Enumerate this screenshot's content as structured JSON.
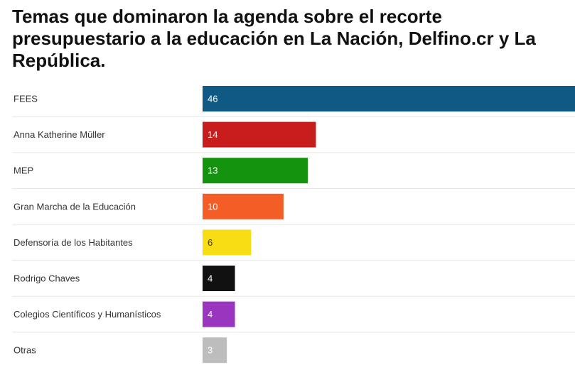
{
  "chart_data": {
    "type": "bar",
    "orientation": "horizontal",
    "title": "Temas que dominaron la agenda sobre el recorte presupuestario a la educación en La Nación, Delfino.cr y La República.",
    "categories": [
      "FEES",
      "Anna Katherine Müller",
      "MEP",
      "Gran Marcha de la Educación",
      "Defensoría de los Habitantes",
      "Rodrigo Chaves",
      "Colegios Científicos y Humanísticos",
      "Otras"
    ],
    "values": [
      46,
      14,
      13,
      10,
      6,
      4,
      4,
      3
    ],
    "colors": [
      "#0e5a85",
      "#c81d1d",
      "#14930f",
      "#f55d27",
      "#f8dd14",
      "#111111",
      "#9a35c0",
      "#bdbdbd"
    ],
    "label_colors": [
      "#ffffff",
      "#ffffff",
      "#ffffff",
      "#ffffff",
      "#333333",
      "#ffffff",
      "#ffffff",
      "#ffffff"
    ],
    "xlim": [
      0,
      46
    ],
    "grid": false,
    "legend": "none"
  }
}
